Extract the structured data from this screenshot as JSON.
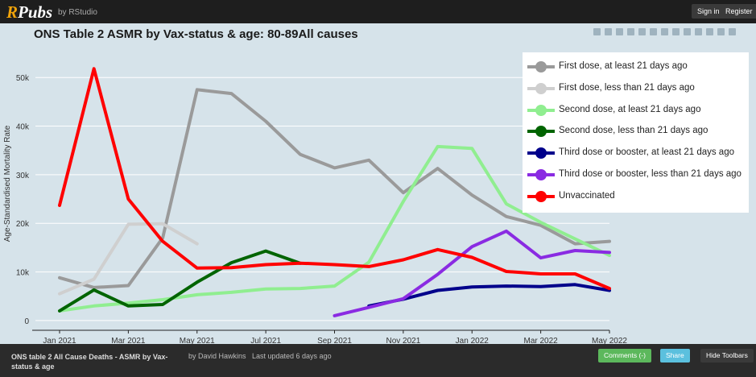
{
  "header": {
    "logo": "RPubs",
    "logo_accent": "R",
    "logo_rest": "Pubs",
    "logo_sub": "by RStudio",
    "signin_label": "Sign in",
    "register_label": "Register"
  },
  "footer": {
    "doc_title": "ONS table 2 All Cause Deaths - ASMR by Vax-status & age",
    "author": "by David Hawkins",
    "updated": "Last updated 6 days ago",
    "comments_label": "Comments (-)",
    "share_label": "Share",
    "hide_label": "Hide Toolbars"
  },
  "chart_data": {
    "type": "line",
    "title": "ONS Table 2 ASMR by Vax-status & age: 80-89All causes",
    "xlabel": "",
    "ylabel": "Age-Standardised Mortality Rate",
    "x_tick_labels": [
      "Jan 2021",
      "Mar 2021",
      "May 2021",
      "Jul 2021",
      "Sep 2021",
      "Nov 2021",
      "Jan 2022",
      "Mar 2022",
      "May 2022"
    ],
    "y_tick_labels": [
      "0",
      "10k",
      "20k",
      "30k",
      "40k",
      "50k"
    ],
    "x": [
      "Jan 2021",
      "Feb 2021",
      "Mar 2021",
      "Apr 2021",
      "May 2021",
      "Jun 2021",
      "Jul 2021",
      "Aug 2021",
      "Sep 2021",
      "Oct 2021",
      "Nov 2021",
      "Dec 2021",
      "Jan 2022",
      "Feb 2022",
      "Mar 2022",
      "Apr 2022",
      "May 2022"
    ],
    "ylim": [
      -2000,
      56000
    ],
    "grid": "horizontal",
    "legend_position": "top-right",
    "series": [
      {
        "name": "First dose, at least 21 days ago",
        "color": "#9a9a9a",
        "values": [
          8800,
          6800,
          7200,
          17000,
          47500,
          46700,
          41000,
          34200,
          31400,
          33000,
          26300,
          31300,
          25800,
          21400,
          19600,
          15800,
          16300
        ]
      },
      {
        "name": "First dose, less than 21 days ago",
        "color": "#cfcfcf",
        "values": [
          5500,
          8500,
          19800,
          19900,
          15800,
          null,
          null,
          null,
          null,
          null,
          null,
          null,
          null,
          null,
          null,
          null,
          null
        ]
      },
      {
        "name": "Second dose, at least 21 days ago",
        "color": "#90ee90",
        "values": [
          2000,
          3000,
          3600,
          4300,
          5300,
          5800,
          6500,
          6600,
          7100,
          12000,
          24500,
          35800,
          35400,
          24000,
          20200,
          16800,
          13400
        ]
      },
      {
        "name": "Second dose, less than 21 days ago",
        "color": "#006400",
        "values": [
          2000,
          6300,
          3000,
          3300,
          7900,
          11900,
          14300,
          11800,
          null,
          null,
          null,
          null,
          null,
          null,
          null,
          null,
          null
        ]
      },
      {
        "name": "Third dose or booster, at least 21 days ago",
        "color": "#00008b",
        "values": [
          null,
          null,
          null,
          null,
          null,
          null,
          null,
          null,
          null,
          3000,
          4400,
          6200,
          6900,
          7100,
          7000,
          7400,
          6200
        ]
      },
      {
        "name": "Third dose or booster, less than 21 days ago",
        "color": "#8a2be2",
        "values": [
          null,
          null,
          null,
          null,
          null,
          null,
          null,
          null,
          1000,
          2700,
          4500,
          9500,
          15200,
          18400,
          12900,
          14400,
          14000
        ]
      },
      {
        "name": "Unvaccinated",
        "color": "#ff0000",
        "values": [
          23700,
          51800,
          25000,
          16300,
          10800,
          10900,
          11500,
          11800,
          11500,
          11100,
          12500,
          14600,
          13000,
          10100,
          9600,
          9600,
          6600
        ]
      }
    ]
  }
}
